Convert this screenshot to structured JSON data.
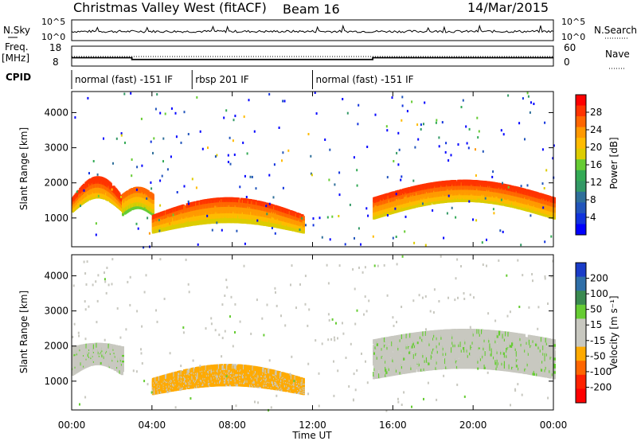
{
  "header": {
    "title": "Christmas Valley West (fitACF)",
    "beam": "Beam 16",
    "date": "14/Mar/2015"
  },
  "panels": {
    "nsky": {
      "label": "N.Sky",
      "ticks": [
        "10^5",
        "10^0"
      ],
      "right_label": "N.Search",
      "right_ticks": [
        "10^5",
        "10^0"
      ]
    },
    "freq": {
      "label_line1": "Freq.",
      "label_line2": "[MHz]",
      "ticks": [
        "18",
        "8"
      ],
      "right_label": "Nave",
      "right_ticks": [
        "60",
        "0"
      ]
    },
    "cpid": {
      "label": "CPID",
      "segments": [
        {
          "start": 0,
          "end": 6.0,
          "text": "normal (fast) -151 IF"
        },
        {
          "start": 6.0,
          "end": 12.0,
          "text": "rbsp 201 IF"
        },
        {
          "start": 12.0,
          "end": 24,
          "text": "normal (fast) -151 IF"
        }
      ]
    }
  },
  "colorbars": {
    "power": {
      "label": "Power [dB]",
      "ticks": [
        "28",
        "24",
        "20",
        "16",
        "12",
        "8",
        "4"
      ],
      "colors": [
        "#ff0000",
        "#ff3300",
        "#ff6600",
        "#ff9900",
        "#ffbb00",
        "#ddcc00",
        "#66cc33",
        "#33aa55",
        "#339966",
        "#2f6f9a",
        "#2255bb",
        "#1133dd",
        "#0000ff"
      ]
    },
    "velocity": {
      "label": "Velocity [m s⁻¹]",
      "ticks": [
        "200",
        "100",
        "50",
        "15",
        "-15",
        "-50",
        "-100",
        "-200"
      ],
      "colors": [
        "#1a3cc8",
        "#2f6fa8",
        "#3a8a50",
        "#66cc33",
        "#c8c8c0",
        "#c8c8c0",
        "#ffaa00",
        "#ff6600",
        "#ff2200",
        "#ff0000"
      ]
    }
  },
  "chart_data": [
    {
      "type": "heatmap",
      "name": "Power",
      "ylabel": "Slant Range [km]",
      "xlabel": "Time UT",
      "x_ticks": [
        "00:00",
        "04:00",
        "08:00",
        "12:00",
        "16:00",
        "20:00",
        "00:00"
      ],
      "y_ticks": [
        "1000",
        "2000",
        "3000",
        "4000"
      ],
      "xlim": [
        0,
        24
      ],
      "ylim": [
        180,
        4600
      ],
      "bands": [
        {
          "t": [
            0.0,
            2.5
          ],
          "range_low": [
            1200,
            1600
          ],
          "range_high": [
            1500,
            2100
          ],
          "value": 26
        },
        {
          "t": [
            2.5,
            4.0
          ],
          "range_low": [
            1100,
            1300
          ],
          "range_high": [
            1600,
            1800
          ],
          "value": 22
        },
        {
          "t": [
            4.0,
            11.5
          ],
          "range_low": [
            600,
            900
          ],
          "range_high": [
            1000,
            1500
          ],
          "value": 24
        },
        {
          "t": [
            15.0,
            24.0
          ],
          "range_low": [
            1000,
            1500
          ],
          "range_high": [
            1500,
            2000
          ],
          "value": 25
        }
      ]
    },
    {
      "type": "heatmap",
      "name": "Velocity",
      "ylabel": "Slant Range [km]",
      "xlabel": "Time UT",
      "x_ticks": [
        "00:00",
        "04:00",
        "08:00",
        "12:00",
        "16:00",
        "20:00",
        "00:00"
      ],
      "y_ticks": [
        "1000",
        "2000",
        "3000",
        "4000"
      ],
      "xlim": [
        0,
        24
      ],
      "ylim": [
        180,
        4600
      ],
      "bands": [
        {
          "t": [
            0.0,
            2.5
          ],
          "range_low": [
            1200,
            1500
          ],
          "range_high": [
            1900,
            2000
          ],
          "value": 0
        },
        {
          "t": [
            4.0,
            11.5
          ],
          "range_low": [
            650,
            900
          ],
          "range_high": [
            1000,
            1400
          ],
          "value": -40
        },
        {
          "t": [
            15.0,
            24.0
          ],
          "range_low": [
            1100,
            1400
          ],
          "range_high": [
            2100,
            2400
          ],
          "value": 0
        }
      ]
    }
  ]
}
